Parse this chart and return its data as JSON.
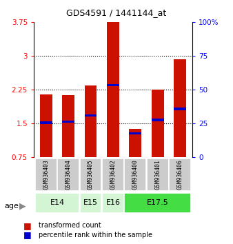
{
  "title": "GDS4591 / 1441144_at",
  "samples": [
    "GSM936403",
    "GSM936404",
    "GSM936405",
    "GSM936402",
    "GSM936400",
    "GSM936401",
    "GSM936406"
  ],
  "red_values": [
    2.15,
    2.13,
    2.35,
    3.75,
    1.38,
    2.25,
    2.92
  ],
  "blue_values": [
    1.52,
    1.54,
    1.68,
    2.35,
    1.28,
    1.58,
    1.82
  ],
  "age_groups_info": [
    {
      "label": "E14",
      "start": 0,
      "end": 1,
      "color": "#d4f5d4"
    },
    {
      "label": "E15",
      "start": 2,
      "end": 2,
      "color": "#d4f5d4"
    },
    {
      "label": "E16",
      "start": 3,
      "end": 3,
      "color": "#d4f5d4"
    },
    {
      "label": "E17.5",
      "start": 4,
      "end": 6,
      "color": "#44dd44"
    }
  ],
  "ylim_left": [
    0.75,
    3.75
  ],
  "ylim_right": [
    0,
    100
  ],
  "yticks_left": [
    0.75,
    1.5,
    2.25,
    3.0,
    3.75
  ],
  "yticks_right": [
    0,
    25,
    50,
    75,
    100
  ],
  "ytick_labels_left": [
    "0.75",
    "1.5",
    "2.25",
    "3",
    "3.75"
  ],
  "ytick_labels_right": [
    "0",
    "25",
    "50",
    "75",
    "100%"
  ],
  "bar_width": 0.55,
  "red_color": "#cc1100",
  "blue_color": "#0000cc",
  "bg_color": "#cccccc",
  "grid_yticks": [
    1.5,
    2.25,
    3.0
  ],
  "blue_bar_height": 0.055
}
